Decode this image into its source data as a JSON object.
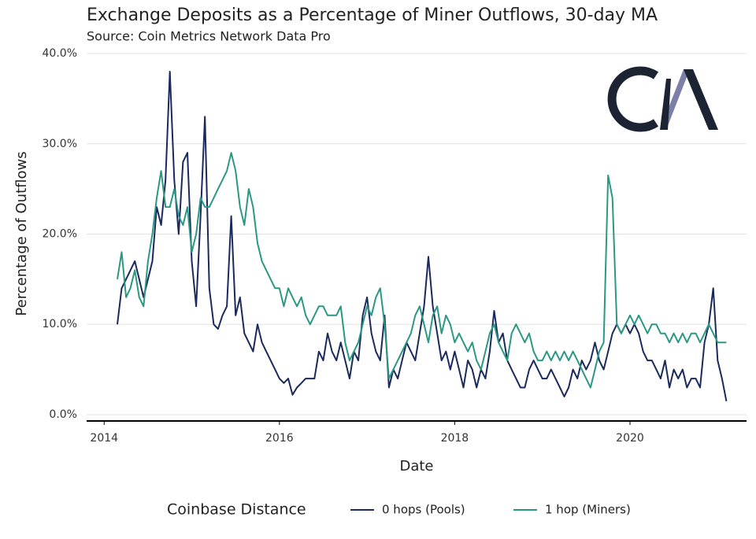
{
  "chart_data": {
    "type": "line",
    "title": "Exchange Deposits as a Percentage of Miner Outflows, 30-day MA",
    "subtitle": "Source: Coin Metrics Network Data Pro",
    "x_label": "Date",
    "y_label": "Percentage of Outflows",
    "legend_title": "Coinbase Distance",
    "legend": "bottom",
    "grid": true,
    "xlim": [
      2013.8,
      2021.33
    ],
    "ylim": [
      -0.7,
      40.7
    ],
    "xticks": [
      2014,
      2016,
      2018,
      2020
    ],
    "yticks": [
      {
        "value": 0,
        "label": "0.0%"
      },
      {
        "value": 10,
        "label": "10.0%"
      },
      {
        "value": 20,
        "label": "20.0%"
      },
      {
        "value": 30,
        "label": "30.0%"
      },
      {
        "value": 40,
        "label": "40.0%"
      }
    ],
    "x": [
      2014.15,
      2014.2,
      2014.25,
      2014.3,
      2014.35,
      2014.4,
      2014.45,
      2014.5,
      2014.55,
      2014.6,
      2014.65,
      2014.7,
      2014.75,
      2014.8,
      2014.85,
      2014.9,
      2014.95,
      2015,
      2015.05,
      2015.1,
      2015.15,
      2015.2,
      2015.25,
      2015.3,
      2015.35,
      2015.4,
      2015.45,
      2015.5,
      2015.55,
      2015.6,
      2015.65,
      2015.7,
      2015.75,
      2015.8,
      2015.85,
      2015.9,
      2015.95,
      2016,
      2016.05,
      2016.1,
      2016.15,
      2016.2,
      2016.25,
      2016.3,
      2016.35,
      2016.4,
      2016.45,
      2016.5,
      2016.55,
      2016.6,
      2016.65,
      2016.7,
      2016.75,
      2016.8,
      2016.85,
      2016.9,
      2016.95,
      2017,
      2017.05,
      2017.1,
      2017.15,
      2017.2,
      2017.25,
      2017.3,
      2017.35,
      2017.4,
      2017.45,
      2017.5,
      2017.55,
      2017.6,
      2017.65,
      2017.7,
      2017.75,
      2017.8,
      2017.85,
      2017.9,
      2017.95,
      2018,
      2018.05,
      2018.1,
      2018.15,
      2018.2,
      2018.25,
      2018.3,
      2018.35,
      2018.4,
      2018.45,
      2018.5,
      2018.55,
      2018.6,
      2018.65,
      2018.7,
      2018.75,
      2018.8,
      2018.85,
      2018.9,
      2018.95,
      2019,
      2019.05,
      2019.1,
      2019.15,
      2019.2,
      2019.25,
      2019.3,
      2019.35,
      2019.4,
      2019.45,
      2019.5,
      2019.55,
      2019.6,
      2019.65,
      2019.7,
      2019.75,
      2019.8,
      2019.85,
      2019.9,
      2019.95,
      2020,
      2020.05,
      2020.1,
      2020.15,
      2020.2,
      2020.25,
      2020.3,
      2020.35,
      2020.4,
      2020.45,
      2020.5,
      2020.55,
      2020.6,
      2020.65,
      2020.7,
      2020.75,
      2020.8,
      2020.85,
      2020.9,
      2020.95,
      2021,
      2021.05,
      2021.1
    ],
    "series": [
      {
        "name": "0 hops (Pools)",
        "color": "#1b2a5c",
        "values": [
          10,
          14,
          15,
          16,
          17,
          15,
          13,
          15,
          17,
          23,
          21,
          26,
          38,
          26,
          20,
          28,
          29,
          17,
          12,
          22,
          33,
          14,
          10,
          9.5,
          11,
          12,
          22,
          11,
          13,
          9,
          8,
          7,
          10,
          8,
          7,
          6,
          5,
          4,
          3.5,
          4,
          2.2,
          3,
          3.5,
          4,
          4,
          4,
          7,
          6,
          9,
          7,
          6,
          8,
          6,
          4,
          7,
          6,
          11,
          13,
          9,
          7,
          6,
          11,
          3,
          5,
          4,
          6,
          8,
          7,
          6,
          9,
          12,
          17.5,
          12,
          9,
          6,
          7,
          5,
          7,
          5,
          3,
          6,
          5,
          3,
          5,
          4,
          7,
          11.5,
          8,
          9,
          6,
          5,
          4,
          3,
          3,
          5,
          6,
          5,
          4,
          4,
          5,
          4,
          3,
          2,
          3,
          5,
          4,
          6,
          5,
          6,
          8,
          6,
          5,
          7,
          9,
          10,
          9,
          10,
          9,
          10,
          9,
          7,
          6,
          6,
          5,
          4,
          6,
          3,
          5,
          4,
          5,
          3,
          4,
          4,
          3,
          8,
          10,
          14,
          6,
          4,
          1.5
        ]
      },
      {
        "name": "1 hop (Miners)",
        "color": "#2a9882",
        "values": [
          15,
          18,
          13,
          14,
          16,
          13,
          12,
          17,
          20,
          24,
          27,
          23,
          23,
          25,
          22,
          21,
          23,
          18,
          20,
          24,
          23,
          23,
          24,
          25,
          26,
          27,
          29,
          27,
          23,
          21,
          25,
          23,
          19,
          17,
          16,
          15,
          14,
          14,
          12,
          14,
          13,
          12,
          13,
          11,
          10,
          11,
          12,
          12,
          11,
          11,
          11,
          12,
          8,
          6,
          7,
          8,
          10,
          12,
          11,
          13,
          14,
          10,
          4,
          5,
          6,
          7,
          8,
          9,
          11,
          12,
          10,
          8,
          11,
          12,
          9,
          11,
          10,
          8,
          9,
          8,
          7,
          8,
          6,
          5,
          7,
          9,
          10,
          8,
          7,
          6,
          9,
          10,
          9,
          8,
          9,
          7,
          6,
          6,
          7,
          6,
          7,
          6,
          7,
          6,
          7,
          6,
          5,
          4,
          3,
          5,
          7,
          8,
          26.5,
          24,
          10,
          9,
          10,
          11,
          10,
          11,
          10,
          9,
          10,
          10,
          9,
          9,
          8,
          9,
          8,
          9,
          8,
          9,
          9,
          8,
          9,
          10,
          9,
          8,
          8,
          8
        ]
      }
    ]
  }
}
